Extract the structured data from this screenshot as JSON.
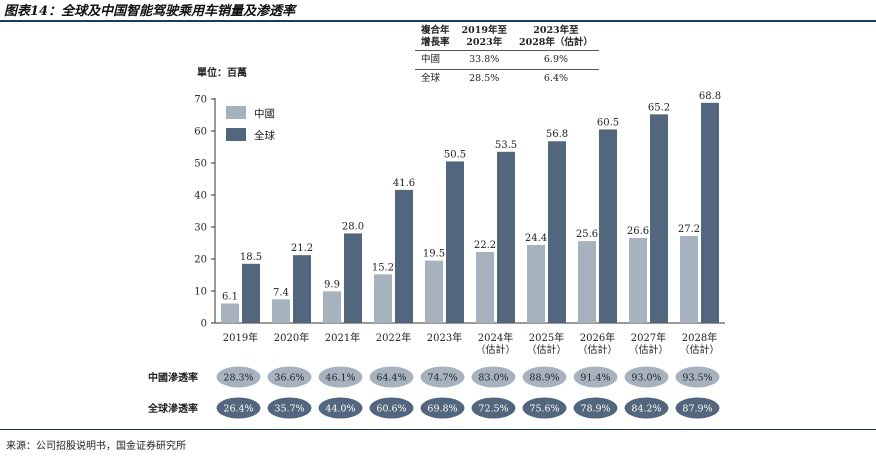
{
  "title": "图表14：全球及中国智能驾驶乘用车销量及渗透率",
  "unit_label": "單位：百萬",
  "cagr_table": {
    "headers": [
      "複合年\n增長率",
      "2019年至\n2023年",
      "2023年至\n2028年（估計）"
    ],
    "rows": [
      {
        "label": "中國",
        "v1": "33.8%",
        "v2": "6.9%"
      },
      {
        "label": "全球",
        "v1": "28.5%",
        "v2": "6.4%"
      }
    ]
  },
  "chart_data": {
    "type": "bar",
    "categories": [
      "2019年",
      "2020年",
      "2021年",
      "2022年",
      "2023年",
      "2024年\n（估計）",
      "2025年\n（估計）",
      "2026年\n（估計）",
      "2027年\n（估計）",
      "2028年\n（估計）"
    ],
    "series": [
      {
        "name": "中國",
        "color": "#a6b3bf",
        "values": [
          6.1,
          7.4,
          9.9,
          15.2,
          19.5,
          22.2,
          24.4,
          25.6,
          26.6,
          27.2
        ]
      },
      {
        "name": "全球",
        "color": "#52667e",
        "values": [
          18.5,
          21.2,
          28.0,
          41.6,
          50.5,
          53.5,
          56.8,
          60.5,
          65.2,
          68.8
        ]
      }
    ],
    "data_labels": [
      [
        "6.1",
        "7.4",
        "9.9",
        "15.2",
        "19.5",
        "22.2",
        "24.4",
        "25.6",
        "26.6",
        "27.2"
      ],
      [
        "18.5",
        "21.2",
        "28.0",
        "41.6",
        "50.5",
        "53.5",
        "56.8",
        "60.5",
        "65.2",
        "68.8"
      ]
    ],
    "ylim": [
      0,
      70
    ],
    "yticks": [
      0,
      10,
      20,
      30,
      40,
      50,
      60,
      70
    ],
    "legend_placement": "top-left",
    "grid": false,
    "penetration": [
      {
        "label": "中國滲透率",
        "color": "#a6b3bf",
        "text_color": "#222222",
        "values": [
          "28.3%",
          "36.6%",
          "46.1%",
          "64.4%",
          "74.7%",
          "83.0%",
          "88.9%",
          "91.4%",
          "93.0%",
          "93.5%"
        ]
      },
      {
        "label": "全球滲透率",
        "color": "#52667e",
        "text_color": "#ffffff",
        "values": [
          "26.4%",
          "35.7%",
          "44.0%",
          "60.6%",
          "69.8%",
          "72.5%",
          "75.6%",
          "78.9%",
          "84.2%",
          "87.9%"
        ]
      }
    ]
  },
  "source": "来源：公司招股说明书，国金证券研究所"
}
